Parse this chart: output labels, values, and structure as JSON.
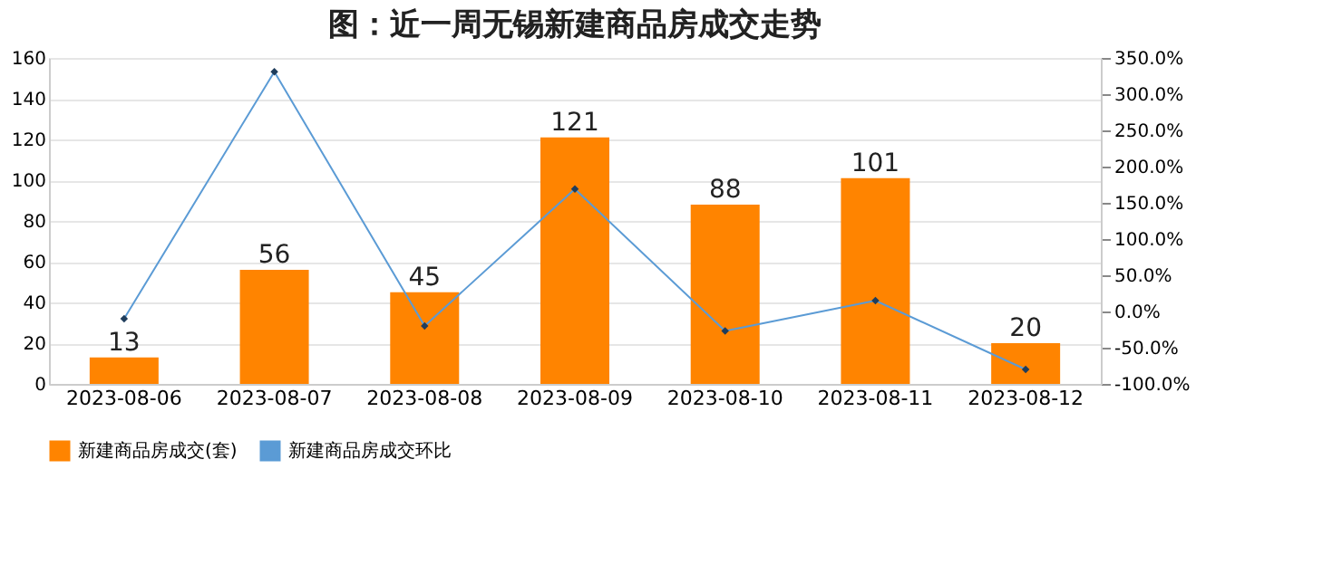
{
  "chart_data": {
    "type": "bar",
    "title": "图：近一周无锡新建商品房成交走势",
    "categories": [
      "2023-08-06",
      "2023-08-07",
      "2023-08-08",
      "2023-08-09",
      "2023-08-10",
      "2023-08-11",
      "2023-08-12"
    ],
    "series": [
      {
        "name": "新建商品房成交(套)",
        "color": "#ff8400",
        "values": [
          13,
          56,
          45,
          121,
          88,
          101,
          20
        ],
        "value_labels": [
          "13",
          "56",
          "45",
          "121",
          "88",
          "101",
          "20"
        ]
      },
      {
        "name": "新建商品房成交环比",
        "type": "line",
        "axis": "y2",
        "color": "#5b9bd5",
        "marker": "diamond",
        "values": [
          -10,
          331,
          -20,
          169,
          -27,
          15,
          -80
        ]
      }
    ],
    "ylim": [
      0,
      160
    ],
    "yticks": [
      0,
      20,
      40,
      60,
      80,
      100,
      120,
      140,
      160
    ],
    "y2lim": [
      -100,
      350
    ],
    "y2ticks": [
      {
        "value": -100,
        "label": "-100.0%"
      },
      {
        "value": -50,
        "label": "-50.0%"
      },
      {
        "value": 0,
        "label": "0.0%"
      },
      {
        "value": 50,
        "label": "50.0%"
      },
      {
        "value": 100,
        "label": "100.0%"
      },
      {
        "value": 150,
        "label": "150.0%"
      },
      {
        "value": 200,
        "label": "200.0%"
      },
      {
        "value": 250,
        "label": "250.0%"
      },
      {
        "value": 300,
        "label": "300.0%"
      },
      {
        "value": 350,
        "label": "350.0%"
      }
    ],
    "grid": "y",
    "legend": "bottom"
  }
}
